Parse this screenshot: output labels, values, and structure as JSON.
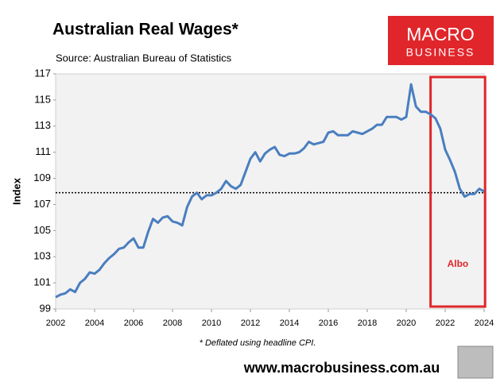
{
  "chart_data": {
    "type": "line",
    "title": "Australian Real Wages*",
    "subtitle": "Source: Australian Bureau of Statistics",
    "ylabel": "Index",
    "footnote": "* Deflated using headline CPI.",
    "x": [
      2002,
      2002.25,
      2002.5,
      2002.75,
      2003,
      2003.25,
      2003.5,
      2003.75,
      2004,
      2004.25,
      2004.5,
      2004.75,
      2005,
      2005.25,
      2005.5,
      2005.75,
      2006,
      2006.25,
      2006.5,
      2006.75,
      2007,
      2007.25,
      2007.5,
      2007.75,
      2008,
      2008.25,
      2008.5,
      2008.75,
      2009,
      2009.25,
      2009.5,
      2009.75,
      2010,
      2010.25,
      2010.5,
      2010.75,
      2011,
      2011.25,
      2011.5,
      2011.75,
      2012,
      2012.25,
      2012.5,
      2012.75,
      2013,
      2013.25,
      2013.5,
      2013.75,
      2014,
      2014.25,
      2014.5,
      2014.75,
      2015,
      2015.25,
      2015.5,
      2015.75,
      2016,
      2016.25,
      2016.5,
      2016.75,
      2017,
      2017.25,
      2017.5,
      2017.75,
      2018,
      2018.25,
      2018.5,
      2018.75,
      2019,
      2019.25,
      2019.5,
      2019.75,
      2020,
      2020.25,
      2020.5,
      2020.75,
      2021,
      2021.25,
      2021.5,
      2021.75,
      2022,
      2022.25,
      2022.5,
      2022.75,
      2023,
      2023.25,
      2023.5,
      2023.75,
      2024
    ],
    "series": [
      {
        "name": "Real wages",
        "color": "#4a7ebf",
        "values": [
          99.9,
          100.1,
          100.2,
          100.5,
          100.3,
          101.0,
          101.3,
          101.8,
          101.7,
          102.0,
          102.5,
          102.9,
          103.2,
          103.6,
          103.7,
          104.1,
          104.4,
          103.7,
          103.7,
          104.9,
          105.9,
          105.6,
          106.0,
          106.1,
          105.7,
          105.6,
          105.4,
          106.8,
          107.6,
          107.9,
          107.4,
          107.7,
          107.7,
          107.9,
          108.2,
          108.8,
          108.4,
          108.2,
          108.5,
          109.5,
          110.5,
          111.0,
          110.3,
          110.9,
          111.2,
          111.4,
          110.8,
          110.7,
          110.9,
          110.9,
          111.0,
          111.3,
          111.8,
          111.6,
          111.7,
          111.8,
          112.5,
          112.6,
          112.3,
          112.3,
          112.3,
          112.6,
          112.5,
          112.4,
          112.6,
          112.8,
          113.1,
          113.1,
          113.7,
          113.7,
          113.7,
          113.5,
          113.7,
          116.2,
          114.5,
          114.1,
          114.1,
          113.9,
          113.6,
          112.8,
          111.2,
          110.4,
          109.5,
          108.2,
          107.6,
          107.8,
          107.8,
          108.2,
          108.0
        ]
      }
    ],
    "reference_line": 107.9,
    "highlight": {
      "x": [
        2021.25,
        2024.05
      ],
      "label": "Albo",
      "color": "#e0262b"
    },
    "xlim": [
      2002,
      2024
    ],
    "xticks": [
      2002,
      2004,
      2006,
      2008,
      2010,
      2012,
      2014,
      2016,
      2018,
      2020,
      2022,
      2024
    ],
    "ylim": [
      99,
      117
    ],
    "yticks": [
      99,
      101,
      103,
      105,
      107,
      109,
      111,
      113,
      115,
      117
    ]
  },
  "logo": {
    "line1": "MACRO",
    "line2": "BUSINESS"
  },
  "website": "www.macrobusiness.com.au"
}
